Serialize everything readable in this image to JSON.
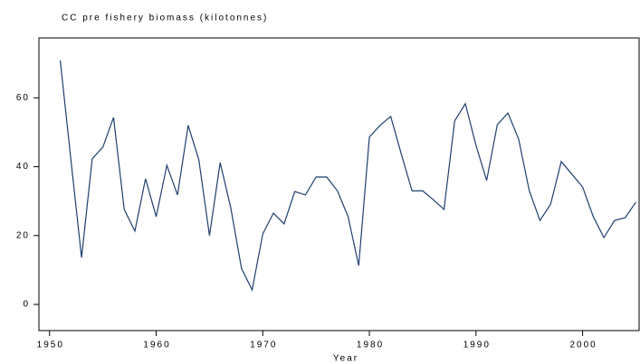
{
  "chart_data": {
    "type": "line",
    "title": "CC pre fishery biomass (kilotonnes)",
    "x_label": "Year",
    "x": [
      1951,
      1952,
      1953,
      1954,
      1955,
      1956,
      1957,
      1958,
      1959,
      1960,
      1961,
      1962,
      1963,
      1964,
      1965,
      1966,
      1967,
      1968,
      1969,
      1970,
      1971,
      1972,
      1973,
      1974,
      1975,
      1976,
      1977,
      1978,
      1979,
      1980,
      1981,
      1982,
      1983,
      1984,
      1985,
      1986,
      1987,
      1988,
      1989,
      1990,
      1991,
      1992,
      1993,
      1994,
      1995,
      1996,
      1997,
      1998,
      1999,
      2000,
      2001,
      2002,
      2003,
      2004,
      2005
    ],
    "series": [
      {
        "color": "#1f3f6f",
        "values": [
          70.9,
          42,
          13.6,
          42.3,
          45.7,
          54.3,
          27.6,
          21.3,
          36.5,
          25.5,
          40.4,
          31.8,
          52,
          42,
          20,
          41.2,
          28,
          10.5,
          4.2,
          20.5,
          26.5,
          23.4,
          32.8,
          31.8,
          37,
          37,
          33,
          25.5,
          11.3,
          48.6,
          52,
          54.6,
          43.6,
          33,
          33,
          30.4,
          27.6,
          53.3,
          58.3,
          46.2,
          36,
          52.2,
          55.6,
          48,
          33,
          24.4,
          29.1,
          41.5,
          37.8,
          34.1,
          25.5,
          19.4,
          24.4,
          25.2,
          29.7
        ]
      }
    ],
    "xlim": [
      1949,
      2005.3
    ],
    "xticks": [
      1950,
      1960,
      1970,
      1980,
      1990,
      2000
    ],
    "ylim": [
      -7.6,
      77.4
    ],
    "yticks": [
      0,
      20,
      40,
      60
    ]
  }
}
